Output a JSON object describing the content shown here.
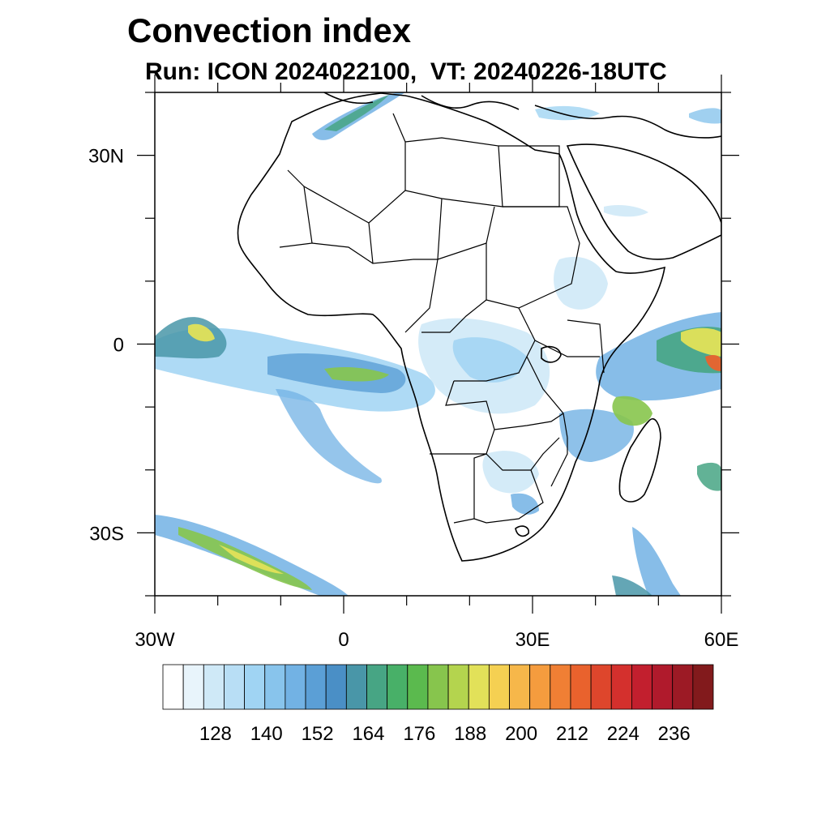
{
  "title": "Convection index",
  "subtitle": "Run: ICON 2024022100,  VT: 20240226-18UTC",
  "map": {
    "region": "Africa and surrounding oceans",
    "lon_range": [
      -30,
      60
    ],
    "lat_range": [
      -40,
      40
    ],
    "lon_ticks": [
      {
        "value": -30,
        "label": "30W"
      },
      {
        "value": 0,
        "label": "0"
      },
      {
        "value": 30,
        "label": "30E"
      },
      {
        "value": 60,
        "label": "60E"
      }
    ],
    "lat_ticks": [
      {
        "value": 30,
        "label": "30N"
      },
      {
        "value": 0,
        "label": "0"
      },
      {
        "value": -30,
        "label": "30S"
      }
    ],
    "coastline_color": "#000000"
  },
  "colorbar": {
    "colors": [
      "#ffffff",
      "#e8f4fb",
      "#cfe9f7",
      "#b8def5",
      "#a0d4f3",
      "#88c4ec",
      "#72b2e4",
      "#5b9fd6",
      "#4a8fc6",
      "#4996a8",
      "#47a584",
      "#48b068",
      "#5bba4e",
      "#87c54d",
      "#b4d44e",
      "#e2e159",
      "#f5d052",
      "#f6b74a",
      "#f59c3e",
      "#f07f34",
      "#e9622d",
      "#de462c",
      "#d4302d",
      "#c21f2e",
      "#b01a2c",
      "#9c1a25",
      "#821a1c"
    ],
    "labels": [
      "128",
      "140",
      "152",
      "164",
      "176",
      "188",
      "200",
      "212",
      "224",
      "236"
    ]
  }
}
